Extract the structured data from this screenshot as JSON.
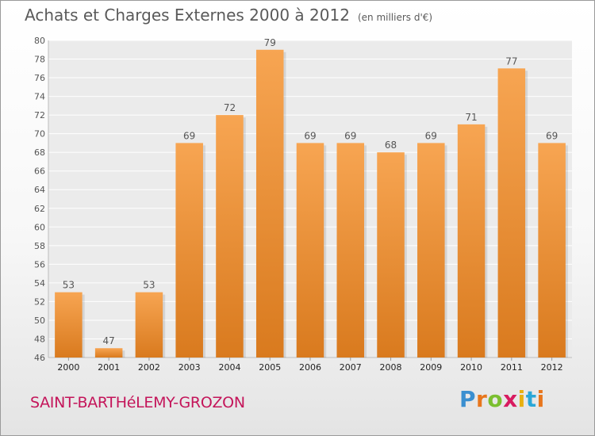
{
  "header": {
    "title": "Achats et Charges Externes 2000 à 2012",
    "subtitle": "(en milliers d'€)"
  },
  "location": "SAINT-BARTHéLEMY-GROZON",
  "logo": {
    "text": "Proxiti",
    "letters": [
      "P",
      "r",
      "o",
      "x",
      "i",
      "t",
      "i"
    ],
    "colors": [
      "#3a8fd0",
      "#e8761c",
      "#7bbf30",
      "#d81b60",
      "#e8b010",
      "#2aa7d8",
      "#e8761c"
    ]
  },
  "colors": {
    "bar_light": "#f7a552",
    "bar_dark": "#d97a1e",
    "text": "#555555"
  },
  "chart_data": {
    "type": "bar",
    "categories": [
      "2000",
      "2001",
      "2002",
      "2003",
      "2004",
      "2005",
      "2006",
      "2007",
      "2008",
      "2009",
      "2010",
      "2011",
      "2012"
    ],
    "values": [
      53,
      47,
      53,
      69,
      72,
      79,
      69,
      69,
      68,
      69,
      71,
      77,
      69
    ],
    "title": "Achats et Charges Externes 2000 à 2012",
    "subtitle": "(en milliers d'€)",
    "ylim": [
      46,
      80
    ],
    "yticks": [
      46,
      48,
      50,
      52,
      54,
      56,
      58,
      60,
      62,
      64,
      66,
      68,
      70,
      72,
      74,
      76,
      78,
      80
    ],
    "grid": true,
    "data_labels": true
  }
}
